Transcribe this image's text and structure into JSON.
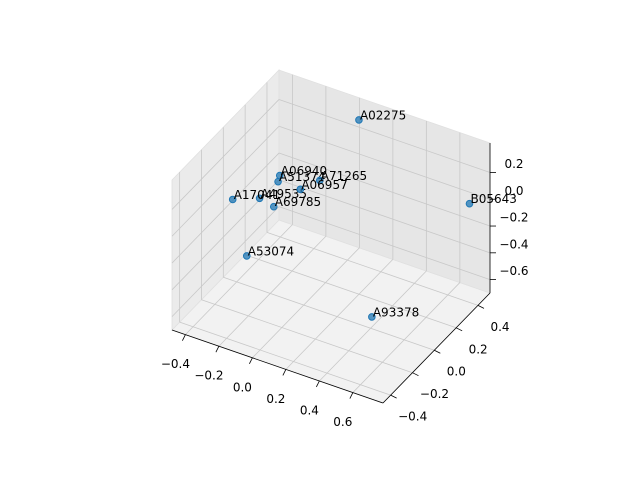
{
  "chart_data": {
    "type": "scatter3d",
    "labels": [
      "A02275",
      "A06940",
      "A51374",
      "A71265",
      "A49535",
      "A06957",
      "A17041",
      "A69785",
      "B05643",
      "A53074",
      "A93378"
    ],
    "x": [
      0.03,
      -0.28,
      -0.29,
      -0.08,
      -0.335,
      -0.157,
      -0.45,
      -0.27,
      0.69,
      -0.34,
      0.42
    ],
    "y": [
      0.46,
      0.21,
      0.21,
      0.27,
      0.11,
      0.21,
      0.04,
      0.14,
      0.46,
      0.0,
      -0.02
    ],
    "z": [
      0.31,
      -0.03,
      -0.08,
      -0.03,
      -0.14,
      -0.08,
      -0.14,
      -0.2,
      -0.03,
      -0.48,
      -0.59
    ],
    "color": "#1f77b4",
    "xlim": [
      -0.48,
      0.78
    ],
    "ylim": [
      -0.47,
      0.51
    ],
    "zlim": [
      -0.7,
      0.42
    ],
    "xticks": [
      {
        "value": -0.4,
        "label": "−0.4"
      },
      {
        "value": -0.2,
        "label": "−0.2"
      },
      {
        "value": 0.0,
        "label": "0.0"
      },
      0.2,
      0.4,
      0.6
    ],
    "yticks": [
      {
        "value": -0.4,
        "label": "−0.4"
      },
      {
        "value": -0.2,
        "label": "−0.2"
      },
      {
        "value": 0.0,
        "label": "0.0"
      },
      0.2,
      0.4
    ],
    "zticks": [
      {
        "value": -0.6,
        "label": "−0.6"
      },
      {
        "value": -0.4,
        "label": "−0.4"
      },
      {
        "value": -0.2,
        "label": "−0.2"
      },
      {
        "value": 0.0,
        "label": "0.0"
      },
      0.2
    ],
    "grid": true
  }
}
